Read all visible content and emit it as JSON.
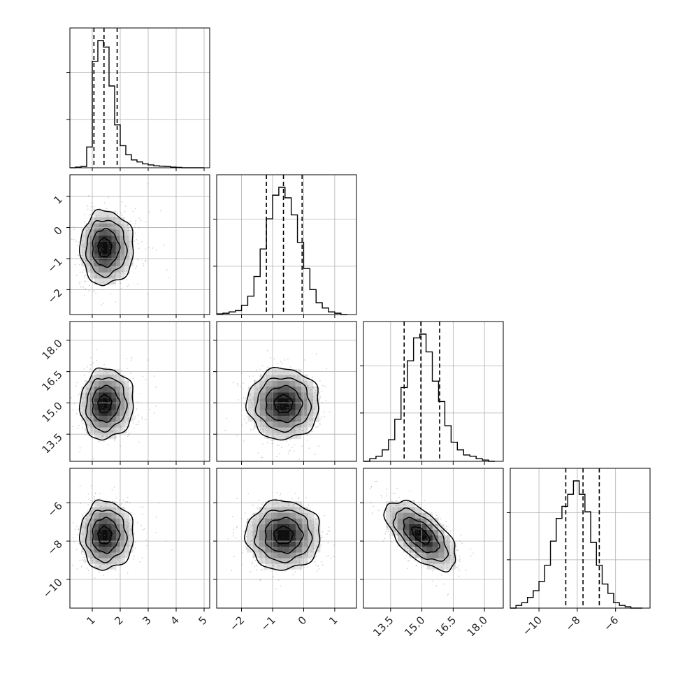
{
  "chart_data": {
    "type": "corner",
    "title": "",
    "parameters": [
      {
        "range": [
          0.2,
          5.2
        ],
        "ticks": [
          1,
          2,
          3,
          4,
          5
        ],
        "tick_labels": [
          "1",
          "2",
          "3",
          "4",
          "5"
        ],
        "quantiles": [
          1.06,
          1.42,
          1.89
        ],
        "hist": {
          "edges": [
            0.2,
            0.4,
            0.6,
            0.8,
            1.0,
            1.2,
            1.4,
            1.6,
            1.8,
            2.0,
            2.2,
            2.4,
            2.6,
            2.8,
            3.0,
            3.2,
            3.4,
            3.6,
            3.8,
            4.0,
            4.2,
            4.4,
            4.6,
            4.8,
            5.0
          ],
          "counts": [
            0.0,
            0.005,
            0.01,
            0.16,
            0.82,
            0.98,
            0.93,
            0.63,
            0.33,
            0.17,
            0.1,
            0.06,
            0.045,
            0.03,
            0.022,
            0.015,
            0.012,
            0.01,
            0.005,
            0.003,
            0.0,
            0.0,
            0.0,
            0.0
          ]
        }
      },
      {
        "range": [
          -2.8,
          1.7
        ],
        "ticks": [
          -2,
          -1,
          0,
          1
        ],
        "tick_labels": [
          "−2",
          "−1",
          "0",
          "1"
        ],
        "quantiles": [
          -1.2,
          -0.65,
          -0.05
        ],
        "hist": {
          "edges": [
            -2.8,
            -2.6,
            -2.4,
            -2.2,
            -2.0,
            -1.8,
            -1.6,
            -1.4,
            -1.2,
            -1.0,
            -0.8,
            -0.6,
            -0.4,
            -0.2,
            0.0,
            0.2,
            0.4,
            0.6,
            0.8,
            1.0,
            1.2,
            1.4
          ],
          "counts": [
            0.005,
            0.01,
            0.02,
            0.03,
            0.07,
            0.14,
            0.29,
            0.5,
            0.73,
            0.91,
            0.97,
            0.89,
            0.76,
            0.55,
            0.35,
            0.19,
            0.09,
            0.05,
            0.02,
            0.01,
            0.0
          ]
        }
      },
      {
        "range": [
          12.2,
          18.9
        ],
        "ticks": [
          13.5,
          15.0,
          16.5,
          18.0
        ],
        "tick_labels": [
          "13.5",
          "15.0",
          "16.5",
          "18.0"
        ],
        "quantiles": [
          14.15,
          14.95,
          15.85
        ],
        "hist": {
          "edges": [
            12.2,
            12.5,
            12.8,
            13.1,
            13.4,
            13.7,
            14.0,
            14.3,
            14.6,
            14.9,
            15.2,
            15.5,
            15.8,
            16.1,
            16.4,
            16.7,
            17.0,
            17.3,
            17.6,
            17.9,
            18.2,
            18.5
          ],
          "counts": [
            0.0,
            0.02,
            0.04,
            0.09,
            0.17,
            0.33,
            0.58,
            0.79,
            0.97,
            1.0,
            0.86,
            0.63,
            0.47,
            0.28,
            0.15,
            0.09,
            0.05,
            0.04,
            0.02,
            0.01,
            0.0
          ]
        }
      },
      {
        "range": [
          -11.5,
          -4.2
        ],
        "ticks": [
          -10,
          -8,
          -6
        ],
        "tick_labels": [
          "−10",
          "−8",
          "−6"
        ],
        "quantiles": [
          -8.6,
          -7.7,
          -6.85
        ],
        "hist": {
          "edges": [
            -11.5,
            -11.2,
            -10.9,
            -10.6,
            -10.3,
            -10.0,
            -9.7,
            -9.4,
            -9.1,
            -8.8,
            -8.5,
            -8.2,
            -7.9,
            -7.6,
            -7.3,
            -7.0,
            -6.7,
            -6.4,
            -6.1,
            -5.8,
            -5.5,
            -5.2,
            -4.9,
            -4.6
          ],
          "counts": [
            0.0,
            0.02,
            0.04,
            0.08,
            0.13,
            0.2,
            0.32,
            0.5,
            0.67,
            0.76,
            0.85,
            0.95,
            0.85,
            0.72,
            0.49,
            0.32,
            0.18,
            0.11,
            0.04,
            0.02,
            0.01,
            0.0,
            0.0
          ]
        }
      }
    ],
    "pairs": [
      {
        "x": 0,
        "y": 1,
        "center": [
          1.42,
          -0.65
        ],
        "sigma": [
          0.42,
          0.6
        ],
        "rho": 0.0,
        "skew_x": 0.8
      },
      {
        "x": 0,
        "y": 2,
        "center": [
          1.42,
          14.95
        ],
        "sigma": [
          0.42,
          0.85
        ],
        "rho": 0.05,
        "skew_x": 0.8
      },
      {
        "x": 0,
        "y": 3,
        "center": [
          1.42,
          -7.7
        ],
        "sigma": [
          0.42,
          0.9
        ],
        "rho": 0.0,
        "skew_x": 0.8
      },
      {
        "x": 1,
        "y": 2,
        "center": [
          -0.65,
          14.95
        ],
        "sigma": [
          0.58,
          0.85
        ],
        "rho": 0.0,
        "skew_x": 0.0
      },
      {
        "x": 1,
        "y": 3,
        "center": [
          -0.65,
          -7.7
        ],
        "sigma": [
          0.6,
          0.9
        ],
        "rho": 0.0,
        "skew_x": 0.0
      },
      {
        "x": 2,
        "y": 3,
        "center": [
          14.95,
          -7.7
        ],
        "sigma": [
          0.85,
          0.9
        ],
        "rho": -0.62,
        "skew_x": 0.0
      }
    ],
    "contour_levels_sigma": [
      0.5,
      1.0,
      1.5,
      2.0
    ],
    "grid": true,
    "colors": {
      "line": "#000000",
      "grid": "#b0b0b0",
      "scatter": "#808080",
      "density_dark": "#000000"
    }
  }
}
